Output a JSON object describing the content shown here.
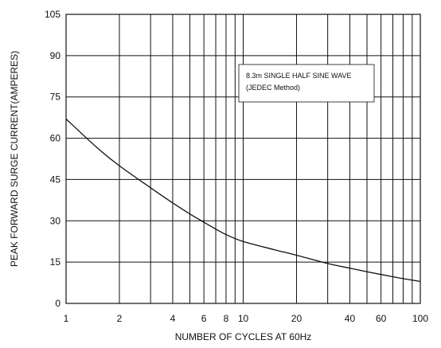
{
  "chart_data": {
    "type": "line",
    "title": "",
    "xlabel": "NUMBER OF CYCLES AT 60Hz",
    "ylabel": "PEAK FORWARD SURGE CURRENT(AMPERES)",
    "x_scale": "log",
    "xlim": [
      1,
      100
    ],
    "ylim": [
      0,
      105
    ],
    "grid": true,
    "x_ticks": [
      1,
      2,
      4,
      6,
      8,
      10,
      20,
      40,
      60,
      100
    ],
    "x_tick_labels": [
      "1",
      "2",
      "4",
      "6",
      "8",
      "10",
      "20",
      "40",
      "60",
      "100"
    ],
    "x_gridlines": [
      2,
      3,
      4,
      5,
      6,
      7,
      8,
      9,
      10,
      20,
      30,
      40,
      50,
      60,
      70,
      80,
      90
    ],
    "y_ticks": [
      0,
      15,
      30,
      45,
      60,
      75,
      90,
      105
    ],
    "y_tick_labels": [
      "0",
      "15",
      "30",
      "45",
      "60",
      "75",
      "90",
      "105"
    ],
    "annotation": [
      "8.3m SINGLE HALF SINE WAVE",
      "(JEDEC Method)"
    ],
    "series": [
      {
        "x": [
          1,
          1.5,
          2,
          3,
          4,
          5,
          6,
          7,
          8,
          10,
          15,
          20,
          30,
          40,
          50,
          60,
          70,
          80,
          100
        ],
        "y": [
          67,
          56.5,
          50,
          42,
          36.5,
          32.5,
          29.5,
          27,
          25,
          22.5,
          19.5,
          17.5,
          14.5,
          12.8,
          11.5,
          10.5,
          9.7,
          9,
          8
        ]
      }
    ]
  }
}
